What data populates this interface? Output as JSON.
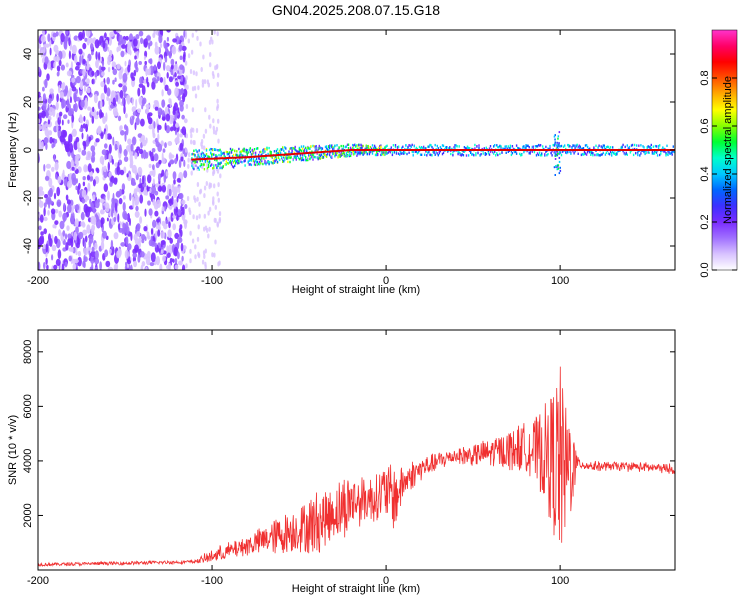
{
  "title": "GN04.2025.208.07.15.G18",
  "colors": {
    "snr_line": "#f03030",
    "carrier": "#e00000",
    "noise": "#7a2cff",
    "colormap": [
      "#ffffff",
      "#d8c2ff",
      "#a070ff",
      "#7a2cff",
      "#3c30ff",
      "#0066ff",
      "#00c8ff",
      "#00ffcc",
      "#00ff33",
      "#88ff00",
      "#ffff00",
      "#ffaa00",
      "#ff5000",
      "#ff0000",
      "#ff0066",
      "#ff33cc"
    ]
  },
  "chart_data": [
    {
      "type": "heatmap",
      "xlabel": "Height of straight line (km)",
      "ylabel": "Frequency (Hz)",
      "xlim": [
        -200,
        166
      ],
      "ylim": [
        -50,
        50
      ],
      "xticks": [
        -200,
        -100,
        0,
        100
      ],
      "yticks": [
        -40,
        -20,
        0,
        20,
        40
      ],
      "colorbar": {
        "label": "Normalized spectral amplitude",
        "range": [
          0,
          1
        ],
        "ticks": [
          0.0,
          0.2,
          0.4,
          0.6,
          0.8
        ]
      },
      "features": {
        "noise_region_x": [
          -200,
          -115
        ],
        "sparse_noise_x": [
          -115,
          -95
        ],
        "carrier_start_x": -112,
        "carrier_line": [
          [
            -112,
            -4
          ],
          [
            -80,
            -3
          ],
          [
            -60,
            -2
          ],
          [
            -40,
            -1
          ],
          [
            -20,
            0
          ],
          [
            0,
            0
          ],
          [
            166,
            0
          ]
        ],
        "spike_x": 98
      }
    },
    {
      "type": "line",
      "xlabel": "Height of straight line (km)",
      "ylabel": "SNR (10 * v/v)",
      "xlim": [
        -200,
        166
      ],
      "ylim": [
        0,
        8800
      ],
      "xticks": [
        -200,
        -100,
        0,
        100
      ],
      "yticks": [
        2000,
        4000,
        6000,
        8000
      ],
      "series": [
        {
          "x": [
            -200,
            -150,
            -110,
            -100,
            -90,
            -80,
            -70,
            -60,
            -50,
            -40,
            -35,
            -30,
            -25,
            -20,
            -10,
            -5,
            0,
            5,
            10,
            15,
            20,
            30,
            40,
            50,
            60,
            70,
            80,
            85,
            90,
            95,
            100,
            103,
            106,
            110,
            120,
            140,
            166
          ],
          "y": [
            200,
            250,
            300,
            500,
            700,
            900,
            1100,
            1300,
            1500,
            1700,
            1900,
            2100,
            2300,
            2500,
            2600,
            2700,
            2900,
            2600,
            3200,
            3500,
            3700,
            4000,
            4200,
            4200,
            4300,
            4400,
            4500,
            4400,
            4300,
            4100,
            3800,
            3600,
            3900,
            3900,
            3800,
            3800,
            3700
          ],
          "envelope": [
            0,
            0,
            0,
            250,
            300,
            350,
            500,
            700,
            800,
            1200,
            1000,
            900,
            1200,
            1000,
            800,
            900,
            1000,
            1200,
            600,
            500,
            400,
            300,
            300,
            400,
            500,
            700,
            900,
            1100,
            1600,
            2400,
            3800,
            2500,
            2000,
            200,
            150,
            150,
            150
          ]
        }
      ]
    }
  ]
}
